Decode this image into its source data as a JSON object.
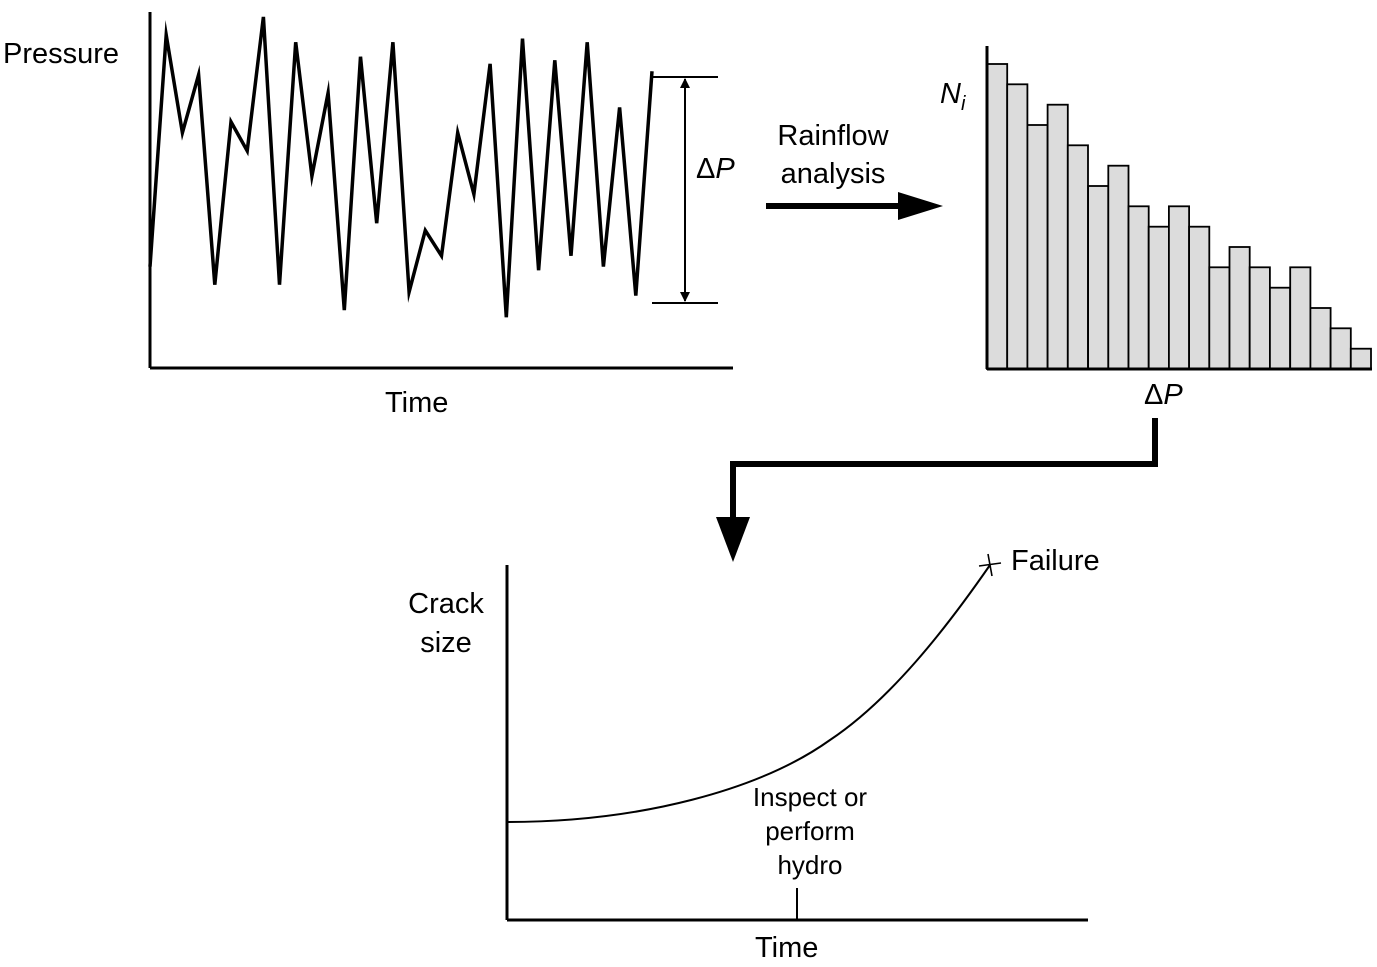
{
  "pressure_panel": {
    "y_label": "Pressure",
    "x_label": "Time",
    "delta_symbol": "Δ",
    "delta_var": "P"
  },
  "transform": {
    "line1": "Rainflow",
    "line2": "analysis"
  },
  "histogram": {
    "y_label_main": "N",
    "y_label_sub": "i",
    "x_label_delta": "Δ",
    "x_label_var": "P",
    "bar_fill": "#dcdcdc",
    "chart_data": {
      "type": "bar",
      "title": "",
      "xlabel": "ΔP",
      "ylabel": "N_i",
      "values": [
        15,
        14,
        12,
        13,
        11,
        9,
        10,
        8,
        7,
        8,
        7,
        5,
        6,
        5,
        4,
        5,
        3,
        2,
        1
      ],
      "ylim": [
        0,
        16
      ]
    }
  },
  "crack_panel": {
    "y_label_line1": "Crack",
    "y_label_line2": "size",
    "x_label": "Time",
    "failure_label": "Failure",
    "inspect_line1": "Inspect or",
    "inspect_line2": "perform",
    "inspect_line3": "hydro"
  },
  "pressure_signal": [
    0.28,
    0.92,
    0.65,
    0.81,
    0.23,
    0.68,
    0.6,
    0.97,
    0.23,
    0.9,
    0.53,
    0.76,
    0.16,
    0.86,
    0.4,
    0.9,
    0.21,
    0.38,
    0.31,
    0.65,
    0.48,
    0.84,
    0.14,
    0.91,
    0.27,
    0.85,
    0.31,
    0.9,
    0.28,
    0.72,
    0.2,
    0.82
  ]
}
